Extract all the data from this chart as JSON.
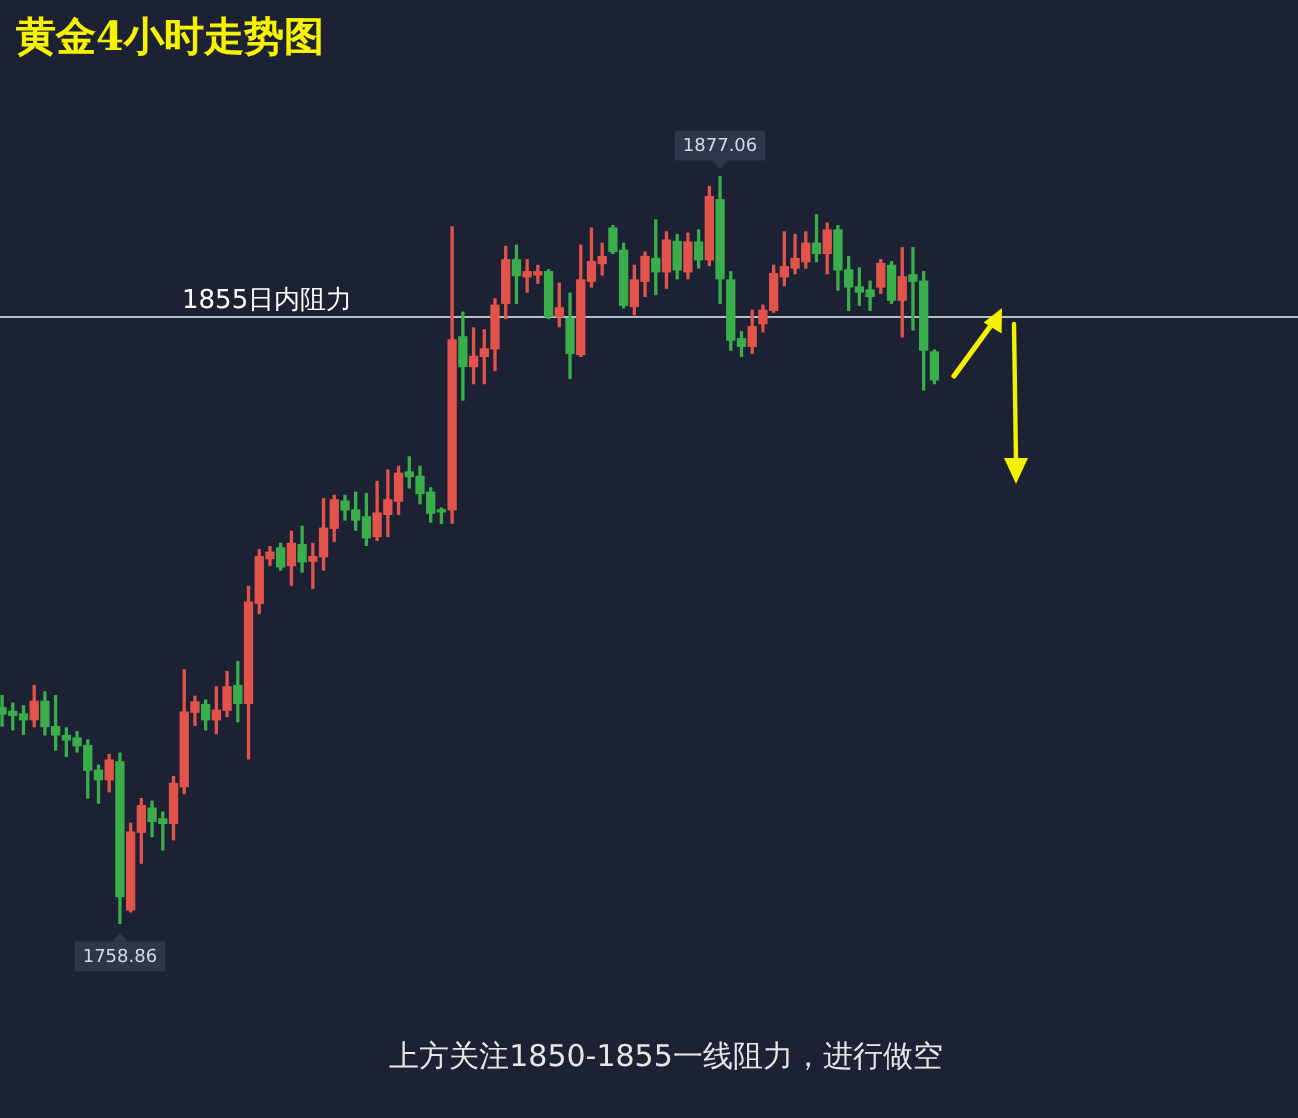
{
  "chart_data": {
    "type": "candlestick",
    "title": "黄金4小时走势图",
    "categories": [
      null,
      null,
      null,
      null,
      null,
      null,
      null,
      null,
      null,
      null,
      null,
      null,
      null,
      null,
      null,
      null,
      null,
      null,
      null,
      null,
      null,
      null,
      null,
      null,
      null,
      null,
      null,
      null,
      null,
      null,
      null,
      null,
      null,
      null,
      null,
      null,
      null,
      null,
      null,
      null,
      null,
      null,
      null,
      null,
      null,
      null,
      null,
      null,
      null,
      null,
      null,
      null,
      null,
      null,
      null,
      null,
      null,
      null,
      null,
      null,
      null,
      null,
      null,
      null,
      null,
      null,
      null,
      null,
      null,
      null,
      null,
      null,
      null,
      null,
      null,
      null,
      null,
      null,
      null,
      null,
      null,
      null,
      null,
      null,
      null,
      null,
      null,
      null
    ],
    "ohlc": [
      [
        1793.0,
        1794.9,
        1790.1,
        1792.0
      ],
      [
        1792.4,
        1793.7,
        1789.5,
        1791.8
      ],
      [
        1792.0,
        1793.3,
        1788.8,
        1791.1
      ],
      [
        1791.1,
        1796.5,
        1790.0,
        1794.0
      ],
      [
        1794.0,
        1795.5,
        1788.7,
        1790.0
      ],
      [
        1790.0,
        1794.9,
        1786.3,
        1788.7
      ],
      [
        1788.6,
        1789.8,
        1785.3,
        1787.9
      ],
      [
        1788.2,
        1789.2,
        1786.0,
        1787.0
      ],
      [
        1787.0,
        1787.9,
        1778.7,
        1783.1
      ],
      [
        1783.1,
        1783.9,
        1777.9,
        1781.6
      ],
      [
        1781.6,
        1785.6,
        1779.7,
        1784.7
      ],
      [
        1784.4,
        1785.8,
        1758.86,
        1763.1
      ],
      [
        1761.0,
        1774.7,
        1760.7,
        1773.3
      ],
      [
        1773.3,
        1778.6,
        1768.4,
        1777.5
      ],
      [
        1777.1,
        1778.2,
        1772.6,
        1775.0
      ],
      [
        1775.4,
        1776.5,
        1770.5,
        1774.7
      ],
      [
        1774.7,
        1782.1,
        1772.1,
        1781.0
      ],
      [
        1780.5,
        1799.0,
        1779.4,
        1792.3
      ],
      [
        1792.3,
        1794.8,
        1790.2,
        1793.9
      ],
      [
        1793.5,
        1794.2,
        1789.5,
        1791.1
      ],
      [
        1791.1,
        1796.3,
        1788.9,
        1792.6
      ],
      [
        1792.6,
        1798.7,
        1791.6,
        1796.3
      ],
      [
        1796.5,
        1800.3,
        1790.8,
        1793.7
      ],
      [
        1793.7,
        1812.2,
        1784.9,
        1809.7
      ],
      [
        1809.5,
        1818.0,
        1807.9,
        1816.9
      ],
      [
        1816.6,
        1818.5,
        1815.5,
        1817.6
      ],
      [
        1818.3,
        1819.0,
        1814.8,
        1815.3
      ],
      [
        1815.5,
        1820.9,
        1812.4,
        1819.0
      ],
      [
        1818.8,
        1821.7,
        1814.5,
        1816.1
      ],
      [
        1816.2,
        1819.0,
        1811.9,
        1816.9
      ],
      [
        1816.9,
        1826.1,
        1814.8,
        1821.4
      ],
      [
        1821.4,
        1826.6,
        1819.3,
        1825.9
      ],
      [
        1825.7,
        1826.6,
        1822.7,
        1824.3
      ],
      [
        1824.3,
        1827.1,
        1821.1,
        1822.7
      ],
      [
        1823.2,
        1826.9,
        1818.7,
        1819.9
      ],
      [
        1820.1,
        1828.8,
        1819.5,
        1823.8
      ],
      [
        1823.6,
        1830.6,
        1820.1,
        1825.9
      ],
      [
        1825.7,
        1831.2,
        1823.6,
        1830.1
      ],
      [
        1830.3,
        1832.7,
        1827.8,
        1829.6
      ],
      [
        1829.6,
        1831.2,
        1825.3,
        1826.9
      ],
      [
        1827.1,
        1827.8,
        1822.4,
        1823.8
      ],
      [
        1824.3,
        1824.6,
        1822.2,
        1824.0
      ],
      [
        1824.3,
        1869.1,
        1822.2,
        1851.2
      ],
      [
        1851.7,
        1855.6,
        1841.7,
        1847.0
      ],
      [
        1847.0,
        1853.1,
        1844.3,
        1848.6
      ],
      [
        1848.6,
        1852.8,
        1844.3,
        1849.8
      ],
      [
        1849.8,
        1857.7,
        1846.4,
        1856.7
      ],
      [
        1857.0,
        1866.0,
        1854.6,
        1863.9
      ],
      [
        1863.9,
        1866.2,
        1857.0,
        1861.4
      ],
      [
        1861.2,
        1863.9,
        1858.8,
        1862.0
      ],
      [
        1861.5,
        1863.0,
        1860.2,
        1862.0
      ],
      [
        1862.0,
        1862.3,
        1854.6,
        1854.9
      ],
      [
        1854.9,
        1860.2,
        1853.3,
        1856.3
      ],
      [
        1854.6,
        1858.6,
        1845.1,
        1849.1
      ],
      [
        1848.9,
        1866.2,
        1848.6,
        1860.7
      ],
      [
        1860.5,
        1868.9,
        1859.6,
        1863.6
      ],
      [
        1863.3,
        1866.5,
        1861.5,
        1864.4
      ],
      [
        1868.9,
        1869.3,
        1864.9,
        1865.2
      ],
      [
        1865.4,
        1866.5,
        1856.3,
        1856.7
      ],
      [
        1856.5,
        1863.0,
        1855.2,
        1860.7
      ],
      [
        1860.5,
        1865.1,
        1858.1,
        1864.4
      ],
      [
        1864.1,
        1870.2,
        1858.4,
        1862.0
      ],
      [
        1862.0,
        1868.3,
        1859.4,
        1867.0
      ],
      [
        1866.8,
        1867.9,
        1860.9,
        1862.3
      ],
      [
        1862.0,
        1868.1,
        1860.9,
        1866.7
      ],
      [
        1866.7,
        1868.6,
        1862.6,
        1863.9
      ],
      [
        1863.9,
        1875.5,
        1863.0,
        1873.9
      ],
      [
        1873.4,
        1877.06,
        1857.0,
        1860.9
      ],
      [
        1860.7,
        1862.0,
        1849.6,
        1851.2
      ],
      [
        1851.4,
        1852.5,
        1848.6,
        1850.2
      ],
      [
        1850.2,
        1855.9,
        1849.1,
        1853.3
      ],
      [
        1853.8,
        1856.7,
        1852.5,
        1855.9
      ],
      [
        1855.9,
        1863.0,
        1855.6,
        1861.7
      ],
      [
        1861.2,
        1868.3,
        1859.8,
        1862.8
      ],
      [
        1862.6,
        1867.9,
        1861.7,
        1864.1
      ],
      [
        1863.6,
        1868.3,
        1862.6,
        1866.5
      ],
      [
        1866.5,
        1871.0,
        1863.6,
        1864.9
      ],
      [
        1864.9,
        1869.7,
        1861.7,
        1868.6
      ],
      [
        1868.6,
        1869.3,
        1859.1,
        1862.3
      ],
      [
        1862.3,
        1864.4,
        1855.9,
        1859.6
      ],
      [
        1859.6,
        1862.6,
        1856.7,
        1858.8
      ],
      [
        1859.1,
        1860.5,
        1855.9,
        1858.1
      ],
      [
        1859.6,
        1863.9,
        1858.6,
        1863.3
      ],
      [
        1863.0,
        1863.6,
        1857.0,
        1857.5
      ],
      [
        1857.5,
        1865.8,
        1851.7,
        1861.2
      ],
      [
        1861.5,
        1865.8,
        1852.8,
        1860.5
      ],
      [
        1860.5,
        1862.0,
        1843.3,
        1849.6
      ],
      [
        1849.3,
        1849.6,
        1844.3,
        1844.9
      ]
    ],
    "colors": [
      "#3aae4a",
      "#3aae4a",
      "#3aae4a",
      "#e2534b",
      "#3aae4a",
      "#3aae4a",
      "#3aae4a",
      "#3aae4a",
      "#3aae4a",
      "#3aae4a",
      "#e2534b",
      "#3aae4a",
      "#e2534b",
      "#e2534b",
      "#3aae4a",
      "#3aae4a",
      "#e2534b",
      "#e2534b",
      "#e2534b",
      "#3aae4a",
      "#e2534b",
      "#e2534b",
      "#3aae4a",
      "#e2534b",
      "#e2534b",
      "#e2534b",
      "#3aae4a",
      "#e2534b",
      "#3aae4a",
      "#e2534b",
      "#e2534b",
      "#e2534b",
      "#3aae4a",
      "#3aae4a",
      "#3aae4a",
      "#e2534b",
      "#e2534b",
      "#e2534b",
      "#3aae4a",
      "#3aae4a",
      "#3aae4a",
      "#3aae4a",
      "#e2534b",
      "#3aae4a",
      "#e2534b",
      "#e2534b",
      "#e2534b",
      "#e2534b",
      "#3aae4a",
      "#e2534b",
      "#e2534b",
      "#3aae4a",
      "#e2534b",
      "#3aae4a",
      "#e2534b",
      "#e2534b",
      "#e2534b",
      "#3aae4a",
      "#3aae4a",
      "#e2534b",
      "#e2534b",
      "#3aae4a",
      "#e2534b",
      "#3aae4a",
      "#e2534b",
      "#3aae4a",
      "#e2534b",
      "#3aae4a",
      "#3aae4a",
      "#3aae4a",
      "#e2534b",
      "#e2534b",
      "#e2534b",
      "#e2534b",
      "#e2534b",
      "#e2534b",
      "#3aae4a",
      "#e2534b",
      "#3aae4a",
      "#3aae4a",
      "#3aae4a",
      "#3aae4a",
      "#e2534b",
      "#3aae4a",
      "#e2534b",
      "#3aae4a",
      "#3aae4a",
      "#3aae4a"
    ],
    "ref_lines": [
      {
        "axis": "y",
        "value": 1855,
        "label": "1855日内阻力",
        "color": "#b9bdc8"
      }
    ],
    "annotations": [
      {
        "text": "1877.06",
        "y": 1877.06
      },
      {
        "text": "1758.86",
        "y": 1758.86
      },
      "上方关注1850-1855一线阻力，进行做空"
    ],
    "tick_labels": false
  }
}
